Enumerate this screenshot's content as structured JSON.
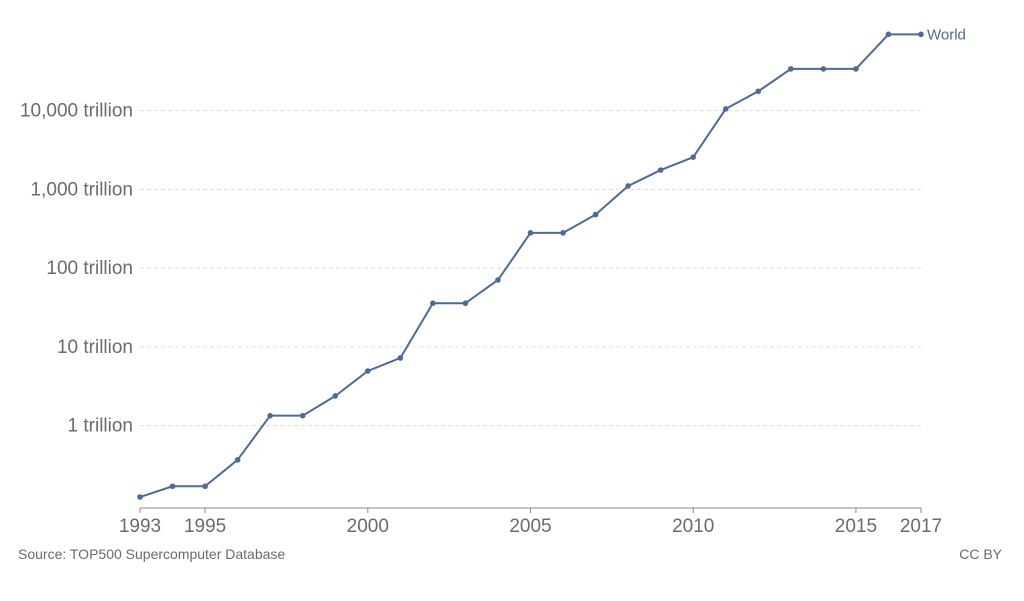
{
  "chart_data": {
    "type": "line",
    "title": "",
    "xlabel": "",
    "ylabel": "",
    "y_scale": "log",
    "grid": "horizontal dashed",
    "x": [
      1993,
      1994,
      1995,
      1996,
      1997,
      1998,
      1999,
      2000,
      2001,
      2002,
      2003,
      2004,
      2005,
      2006,
      2007,
      2008,
      2009,
      2010,
      2011,
      2012,
      2013,
      2014,
      2015,
      2016,
      2017
    ],
    "x_ticks": [
      "1993",
      "1995",
      "2000",
      "2005",
      "2010",
      "2015",
      "2017"
    ],
    "y_ticks": [
      {
        "value": 1000000000000.0,
        "label": "1 trillion"
      },
      {
        "value": 10000000000000.0,
        "label": "10 trillion"
      },
      {
        "value": 100000000000000.0,
        "label": "100 trillion"
      },
      {
        "value": 1000000000000000.0,
        "label": "1,000 trillion"
      },
      {
        "value": 1e+16,
        "label": "10,000 trillion"
      }
    ],
    "ylim": [
      90000000000.0,
      1.5e+17
    ],
    "series": [
      {
        "name": "World",
        "color": "#4c6a9c",
        "values": [
          124000000000.0,
          170000000000.0,
          170000000000.0,
          368000000000.0,
          1338000000000.0,
          1338000000000.0,
          2380000000000.0,
          4940000000000.0,
          7230000000000.0,
          35860000000000.0,
          35860000000000.0,
          70700000000000.0,
          280600000000000.0,
          280600000000000.0,
          478200000000000.0,
          1105000000000000.0,
          1759000000000000.0,
          2566000000000000.0,
          1.051e+16,
          1.759e+16,
          3.386e+16,
          3.386e+16,
          3.386e+16,
          9.3e+16,
          9.3e+16
        ]
      }
    ]
  },
  "footer": {
    "source": "Source: TOP500 Supercomputer Database",
    "license": "CC BY"
  }
}
